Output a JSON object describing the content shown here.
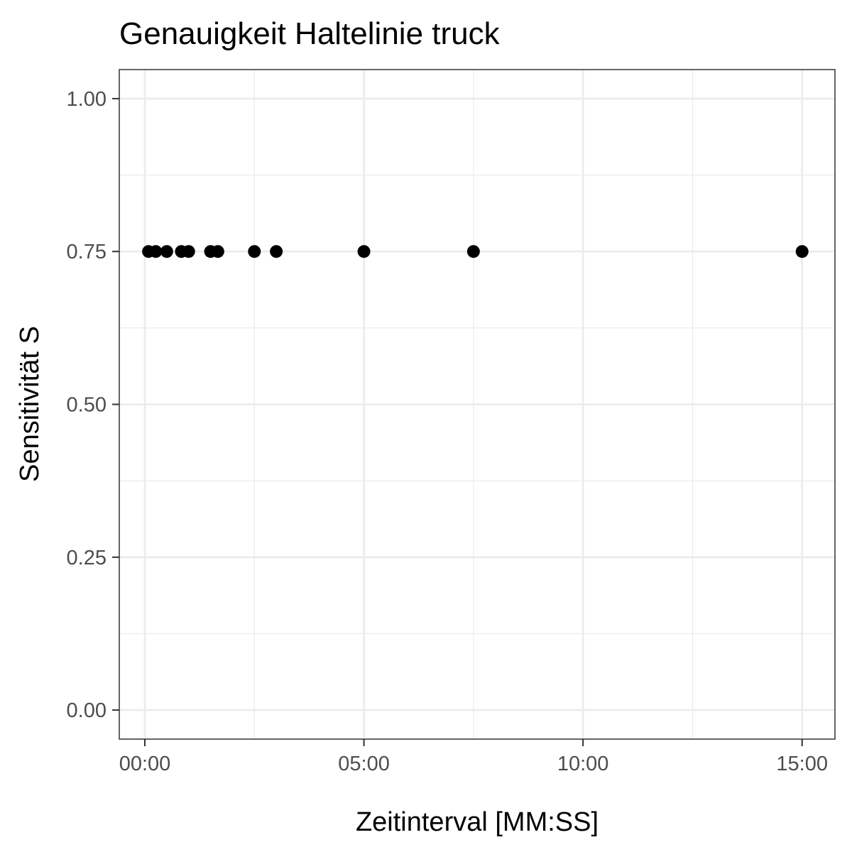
{
  "chart_data": {
    "type": "scatter",
    "title": "Genauigkeit Haltelinie truck",
    "xlabel": "Zeitinterval [MM:SS]",
    "ylabel": "Sensitivität S",
    "x_unit": "seconds",
    "xlim": [
      -35,
      945
    ],
    "ylim": [
      -0.0475,
      1.0475
    ],
    "x_ticks": [
      {
        "value": 0,
        "label": "00:00"
      },
      {
        "value": 300,
        "label": "05:00"
      },
      {
        "value": 600,
        "label": "10:00"
      },
      {
        "value": 900,
        "label": "15:00"
      }
    ],
    "x_minor_ticks": [
      150,
      450,
      750
    ],
    "y_ticks": [
      {
        "value": 0.0,
        "label": "0.00"
      },
      {
        "value": 0.25,
        "label": "0.25"
      },
      {
        "value": 0.5,
        "label": "0.50"
      },
      {
        "value": 0.75,
        "label": "0.75"
      },
      {
        "value": 1.0,
        "label": "1.00"
      }
    ],
    "y_minor_ticks": [
      0.125,
      0.375,
      0.625,
      0.875
    ],
    "grid": true,
    "point_color": "#000000",
    "points": [
      {
        "x": 5,
        "y": 0.75
      },
      {
        "x": 15,
        "y": 0.75
      },
      {
        "x": 30,
        "y": 0.75
      },
      {
        "x": 50,
        "y": 0.75
      },
      {
        "x": 60,
        "y": 0.75
      },
      {
        "x": 90,
        "y": 0.75
      },
      {
        "x": 100,
        "y": 0.75
      },
      {
        "x": 150,
        "y": 0.75
      },
      {
        "x": 180,
        "y": 0.75
      },
      {
        "x": 300,
        "y": 0.75
      },
      {
        "x": 450,
        "y": 0.75
      },
      {
        "x": 900,
        "y": 0.75
      }
    ]
  }
}
